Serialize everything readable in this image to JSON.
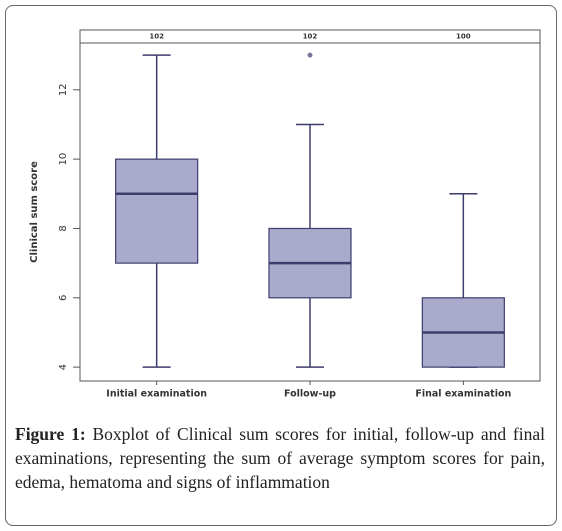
{
  "chart_data": {
    "type": "boxplot",
    "y_label": "Clinical sum score",
    "categories": [
      "Initial examination",
      "Follow-up",
      "Final examination"
    ],
    "counts": [
      102,
      102,
      100
    ],
    "boxes": [
      {
        "min": 4,
        "q1": 7,
        "median": 9,
        "q3": 10,
        "max": 13,
        "outliers": []
      },
      {
        "min": 4,
        "q1": 6,
        "median": 7,
        "q3": 8,
        "max": 11,
        "outliers": [
          13
        ]
      },
      {
        "min": 4,
        "q1": 4,
        "median": 5,
        "q3": 6,
        "max": 9,
        "outliers": []
      }
    ],
    "color": "#aaaacc",
    "edge_color": "#3e3e6e",
    "ylim": [
      3.6,
      13.35
    ],
    "yticks": [
      4,
      6,
      8,
      10,
      12
    ]
  },
  "caption": {
    "label": "Figure 1:",
    "text": "Boxplot of Clinical sum scores for initial, follow-up and final examinations, representing the sum of average symptom scores for pain, edema, hematoma and signs of inflammation"
  }
}
